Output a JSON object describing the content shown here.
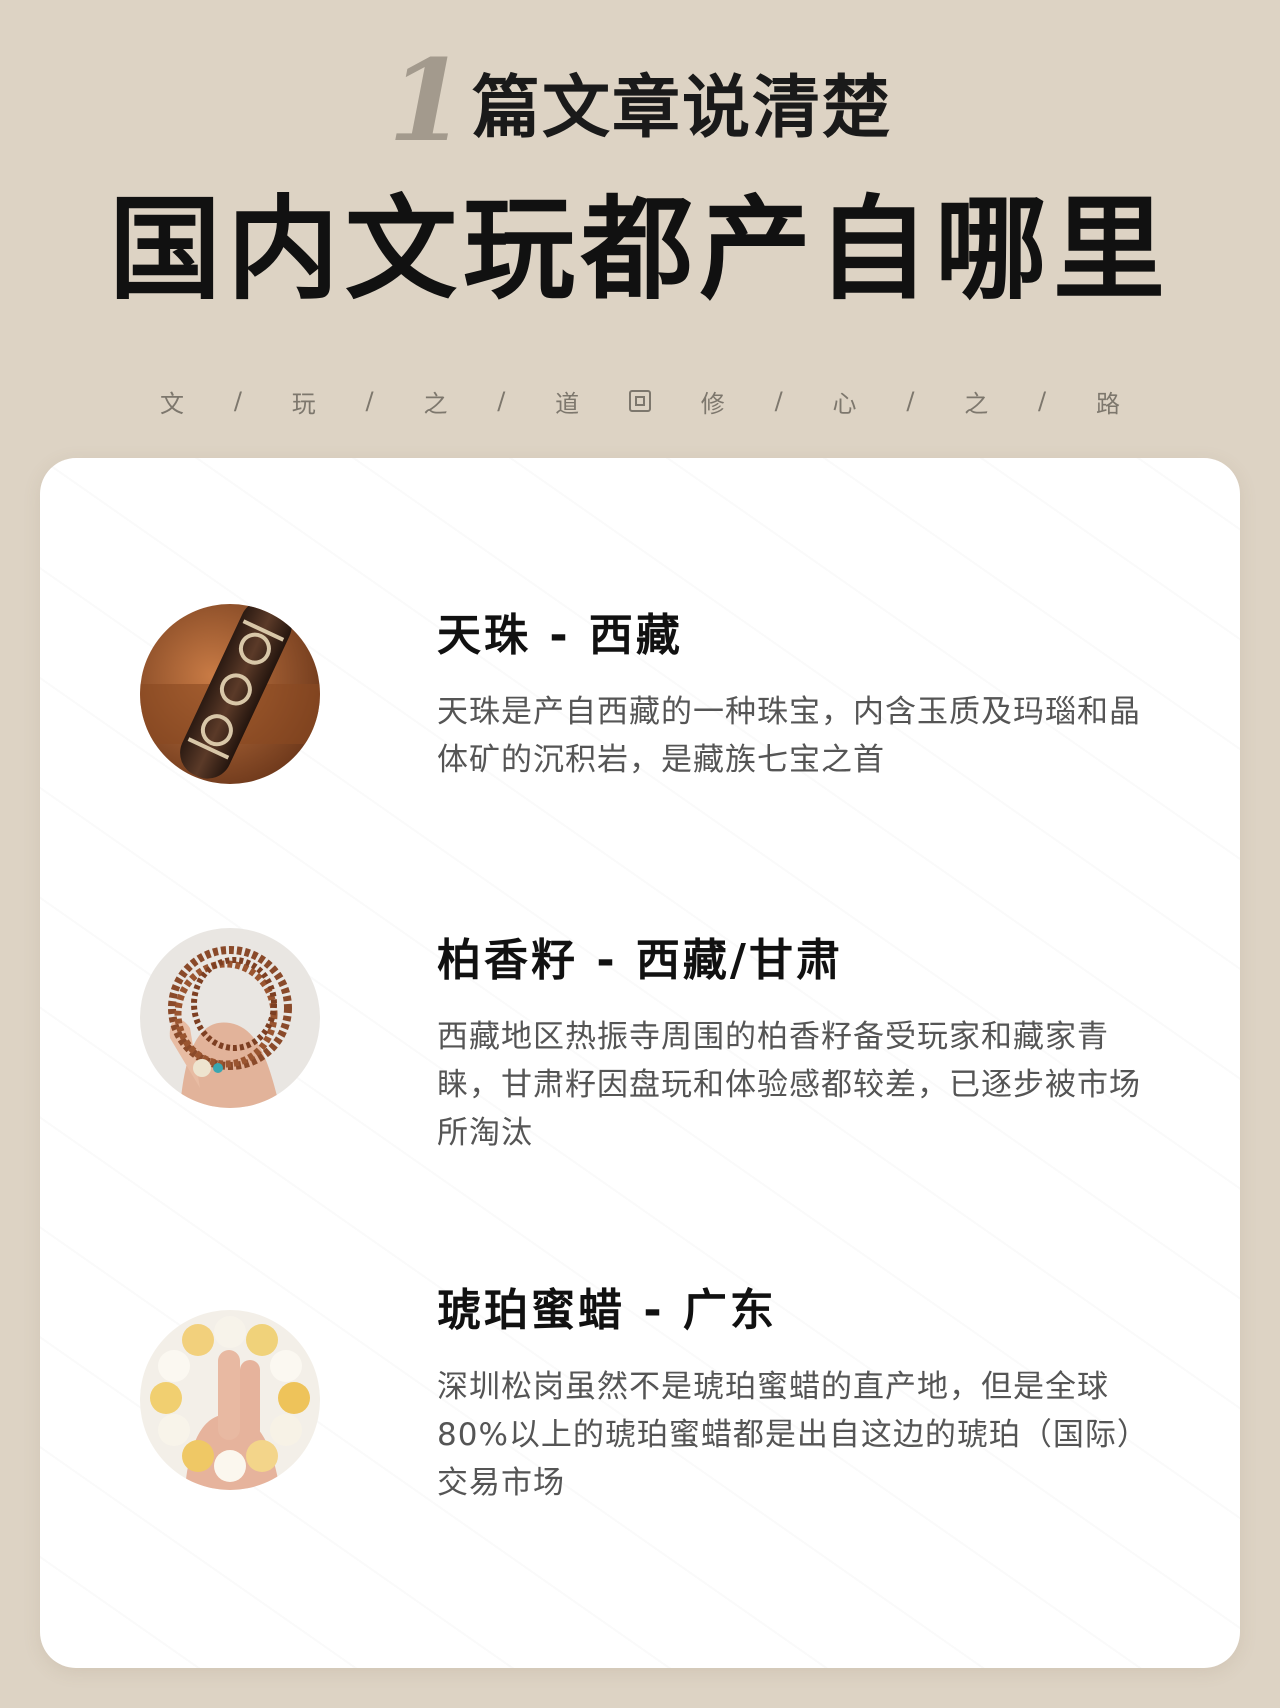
{
  "header": {
    "number": "1",
    "subtitle": "篇文章说清楚",
    "title": "国内文玩都产自哪里",
    "motto_left": [
      "文",
      "/",
      "玩",
      "/",
      "之",
      "/",
      "道"
    ],
    "motto_right": [
      "修",
      "/",
      "心",
      "/",
      "之",
      "/",
      "路"
    ]
  },
  "items": [
    {
      "title": "天珠 - 西藏",
      "desc": "天珠是产自西藏的一种珠宝，内含玉质及玛瑙和晶体矿的沉积岩，是藏族七宝之首",
      "image": "dzi-bead-photo"
    },
    {
      "title": "柏香籽 - 西藏/甘肃",
      "desc": "西藏地区热振寺周围的柏香籽备受玩家和藏家青睐，甘肃籽因盘玩和体验感都较差，已逐步被市场所淘汰",
      "image": "cypress-seed-bracelet-photo"
    },
    {
      "title": "琥珀蜜蜡 - 广东",
      "desc": "深圳松岗虽然不是琥珀蜜蜡的直产地，但是全球80%以上的琥珀蜜蜡都是出自这边的琥珀（国际）交易市场",
      "image": "amber-beeswax-bracelet-photo"
    }
  ],
  "colors": {
    "background": "#ddd3c4",
    "card": "#ffffff",
    "accent_number": "#a39a8d"
  }
}
